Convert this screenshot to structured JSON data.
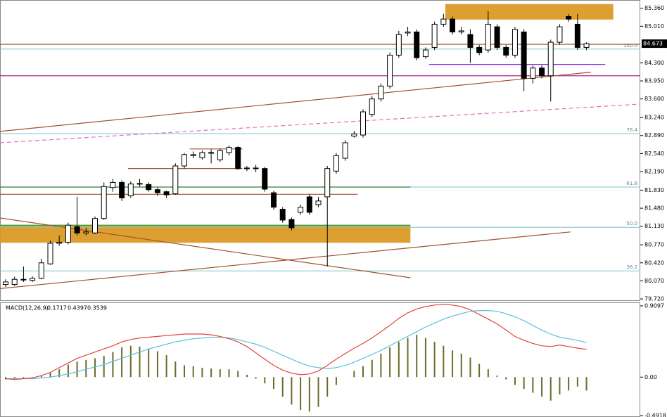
{
  "chart_data": [
    {
      "type": "candlestick",
      "open": [
        80.0,
        80.0,
        80.1,
        80.08,
        80.12,
        80.4,
        80.8,
        80.82,
        81.12,
        81.0,
        81.0,
        81.28,
        81.88,
        81.98,
        81.72,
        81.95,
        81.94,
        81.84,
        81.8,
        81.76,
        82.3,
        82.5,
        82.46,
        82.55,
        82.42,
        82.56,
        82.66,
        82.25,
        82.26,
        82.25,
        81.78,
        81.46,
        81.26,
        81.4,
        81.7,
        81.55,
        81.7,
        82.2,
        82.45,
        82.88,
        82.9,
        83.3,
        83.6,
        83.85,
        84.45,
        84.88,
        84.9,
        84.42,
        84.6,
        85.05,
        85.15,
        84.9,
        84.85,
        84.6,
        84.55,
        85.0,
        84.6,
        84.45,
        84.9,
        84.0,
        84.2,
        84.05,
        84.7,
        85.2,
        85.05,
        84.6
      ],
      "high": [
        80.1,
        80.15,
        80.35,
        80.16,
        80.5,
        80.85,
        80.95,
        81.2,
        81.7,
        81.1,
        81.32,
        81.98,
        82.05,
        82.02,
        82.0,
        82.05,
        81.98,
        81.88,
        81.82,
        82.35,
        82.55,
        82.58,
        82.6,
        82.62,
        82.64,
        82.7,
        82.68,
        82.3,
        82.32,
        82.28,
        81.82,
        81.5,
        81.3,
        81.55,
        81.75,
        81.7,
        82.3,
        82.55,
        82.8,
        82.98,
        83.4,
        83.66,
        83.9,
        84.5,
        84.92,
        85.0,
        84.95,
        84.6,
        85.1,
        85.25,
        85.2,
        85.0,
        84.95,
        84.65,
        85.3,
        85.05,
        84.65,
        85.0,
        84.95,
        84.25,
        84.25,
        84.75,
        85.05,
        85.25,
        85.25,
        84.7
      ],
      "low": [
        79.95,
        79.97,
        80.05,
        80.05,
        80.1,
        80.38,
        80.75,
        80.78,
        80.95,
        80.95,
        80.98,
        81.25,
        81.8,
        81.62,
        81.68,
        81.9,
        81.8,
        81.72,
        81.68,
        81.74,
        82.25,
        82.45,
        82.42,
        82.35,
        82.38,
        82.5,
        82.22,
        82.2,
        82.18,
        81.8,
        81.45,
        81.2,
        81.05,
        81.35,
        81.35,
        81.5,
        80.35,
        82.15,
        82.4,
        82.85,
        82.85,
        83.25,
        83.55,
        83.8,
        84.4,
        84.82,
        84.35,
        84.38,
        84.55,
        85.0,
        84.85,
        84.85,
        84.3,
        84.45,
        84.5,
        84.55,
        84.4,
        84.4,
        83.75,
        83.9,
        84.0,
        83.55,
        84.65,
        85.1,
        84.55,
        84.55
      ],
      "close": [
        80.05,
        80.1,
        80.1,
        80.12,
        80.42,
        80.8,
        80.82,
        81.15,
        81.0,
        81.02,
        81.28,
        81.9,
        81.98,
        81.68,
        81.95,
        81.96,
        81.84,
        81.78,
        81.74,
        82.3,
        82.52,
        82.52,
        82.56,
        82.56,
        82.6,
        82.66,
        82.25,
        82.26,
        82.25,
        81.85,
        81.5,
        81.25,
        81.1,
        81.5,
        81.4,
        81.62,
        82.25,
        82.5,
        82.75,
        82.92,
        83.35,
        83.6,
        83.85,
        84.45,
        84.85,
        84.9,
        84.4,
        84.55,
        85.05,
        85.15,
        84.9,
        84.92,
        84.6,
        84.5,
        85.05,
        84.6,
        84.45,
        84.95,
        84.0,
        84.2,
        84.05,
        84.7,
        85.0,
        85.15,
        84.6,
        84.673
      ],
      "up_color": "#ffffff",
      "down_color": "#000000",
      "xlim": [
        -0.63,
        71.02
      ],
      "ylim": [
        79.68,
        85.52
      ],
      "yticks": [
        {
          "value": 85.36,
          "label": "85.360"
        },
        {
          "value": 85.01,
          "label": "85.010"
        },
        {
          "value": 84.3,
          "label": "84.300"
        },
        {
          "value": 83.95,
          "label": "83.950"
        },
        {
          "value": 83.6,
          "label": "83.600"
        },
        {
          "value": 83.24,
          "label": "83.240"
        },
        {
          "value": 82.89,
          "label": "82.890"
        },
        {
          "value": 82.54,
          "label": "82.540"
        },
        {
          "value": 82.19,
          "label": "82.190"
        },
        {
          "value": 81.83,
          "label": "81.830"
        },
        {
          "value": 81.48,
          "label": "81.480"
        },
        {
          "value": 81.13,
          "label": "81.130"
        },
        {
          "value": 80.77,
          "label": "80.770"
        },
        {
          "value": 80.42,
          "label": "80.420"
        },
        {
          "value": 80.07,
          "label": "80.070"
        },
        {
          "value": 79.72,
          "label": "79.720"
        }
      ],
      "last_price": 84.673,
      "fib_levels": [
        {
          "price": 84.568,
          "text": "100.0"
        },
        {
          "price": 82.928,
          "text": "76.4"
        },
        {
          "price": 81.89,
          "text": "61.8"
        },
        {
          "price": 81.11,
          "text": "50.0"
        },
        {
          "price": 80.264,
          "text": "38.2"
        }
      ],
      "fib_color": "#7fc4cc",
      "zones": [
        {
          "x0": -0.63,
          "x1": 45.3,
          "top": 81.15,
          "bottom": 80.81,
          "color": "#d9961a"
        },
        {
          "x0": 49.2,
          "x1": 68.0,
          "top": 85.44,
          "bottom": 85.14,
          "color": "#d9961a"
        }
      ],
      "hlines": [
        {
          "price": 84.66,
          "x0": -0.63,
          "x1": 71.02,
          "color": "#a0522d"
        },
        {
          "price": 84.05,
          "x0": -0.63,
          "x1": 71.02,
          "color": "#b0208a"
        },
        {
          "price": 84.27,
          "x0": 47.4,
          "x1": 67.1,
          "color": "#8a2be2"
        },
        {
          "price": 81.89,
          "x0": -0.63,
          "x1": 45.3,
          "color": "#2e7d32"
        },
        {
          "price": 81.75,
          "x0": -0.63,
          "x1": 39.4,
          "color": "#a0522d"
        },
        {
          "price": 81.15,
          "x0": -0.63,
          "x1": 45.3,
          "color": "#2e9d32"
        },
        {
          "price": 82.25,
          "x0": 13.7,
          "x1": 26.5,
          "color": "#a0522d"
        },
        {
          "price": 82.63,
          "x0": 20.6,
          "x1": 26.5,
          "color": "#a0522d"
        }
      ],
      "trendlines": [
        {
          "x0": -0.63,
          "p0": 82.97,
          "x1": 65.5,
          "p1": 84.12,
          "color": "#a0522d",
          "dashed": false
        },
        {
          "x0": -0.63,
          "p0": 82.75,
          "x1": 71.02,
          "p1": 83.5,
          "color": "#e070c0",
          "dashed": true
        },
        {
          "x0": -0.63,
          "p0": 81.29,
          "x1": 45.3,
          "p1": 80.13,
          "color": "#a0522d",
          "dashed": false
        },
        {
          "x0": -0.63,
          "p0": 79.92,
          "x1": 63.2,
          "p1": 81.02,
          "color": "#a0522d",
          "dashed": false
        }
      ]
    },
    {
      "type": "macd",
      "title": "MACD(12,26,9)",
      "xlim": [
        -0.63,
        71.02
      ],
      "ylim": [
        -0.5,
        0.945
      ],
      "yticks": [
        0.9097,
        {
          "value": 0,
          "label": "0.00"
        },
        -0.4918
      ],
      "series": [
        {
          "style": "histogram",
          "color": "#6b6b2a",
          "values": [
            -0.03,
            -0.02,
            -0.02,
            -0.01,
            0.02,
            0.06,
            0.1,
            0.16,
            0.2,
            0.22,
            0.24,
            0.27,
            0.32,
            0.38,
            0.4,
            0.39,
            0.36,
            0.33,
            0.28,
            0.2,
            0.15,
            0.14,
            0.12,
            0.11,
            0.1,
            0.1,
            0.08,
            0.03,
            -0.02,
            -0.08,
            -0.15,
            -0.25,
            -0.35,
            -0.42,
            -0.44,
            -0.38,
            -0.25,
            -0.1,
            0.0,
            0.08,
            0.14,
            0.22,
            0.3,
            0.38,
            0.45,
            0.5,
            0.54,
            0.5,
            0.45,
            0.4,
            0.34,
            0.3,
            0.25,
            0.17,
            0.1,
            0.02,
            -0.03,
            -0.1,
            -0.15,
            -0.2,
            -0.25,
            -0.3,
            -0.22,
            -0.17,
            -0.12,
            -0.1717
          ]
        },
        {
          "style": "line",
          "color": "#5bc0de",
          "values": [
            -0.02,
            -0.02,
            -0.02,
            -0.02,
            -0.01,
            0.0,
            0.02,
            0.04,
            0.07,
            0.1,
            0.13,
            0.16,
            0.2,
            0.24,
            0.28,
            0.32,
            0.36,
            0.39,
            0.42,
            0.45,
            0.47,
            0.49,
            0.5,
            0.51,
            0.51,
            0.5,
            0.48,
            0.45,
            0.42,
            0.38,
            0.33,
            0.28,
            0.23,
            0.18,
            0.14,
            0.12,
            0.11,
            0.12,
            0.15,
            0.19,
            0.24,
            0.29,
            0.34,
            0.4,
            0.46,
            0.52,
            0.58,
            0.64,
            0.69,
            0.74,
            0.78,
            0.81,
            0.84,
            0.85,
            0.85,
            0.84,
            0.81,
            0.77,
            0.72,
            0.66,
            0.6,
            0.55,
            0.51,
            0.49,
            0.47,
            0.4397
          ]
        },
        {
          "style": "line",
          "color": "#e0453a",
          "values": [
            -0.02,
            -0.03,
            -0.02,
            -0.01,
            0.02,
            0.06,
            0.12,
            0.18,
            0.24,
            0.28,
            0.32,
            0.36,
            0.4,
            0.45,
            0.48,
            0.5,
            0.51,
            0.52,
            0.53,
            0.54,
            0.55,
            0.55,
            0.55,
            0.54,
            0.52,
            0.49,
            0.45,
            0.39,
            0.31,
            0.23,
            0.15,
            0.09,
            0.05,
            0.03,
            0.04,
            0.08,
            0.15,
            0.23,
            0.3,
            0.37,
            0.43,
            0.5,
            0.58,
            0.66,
            0.75,
            0.82,
            0.87,
            0.9,
            0.92,
            0.93,
            0.92,
            0.9,
            0.86,
            0.8,
            0.74,
            0.68,
            0.6,
            0.52,
            0.47,
            0.43,
            0.4,
            0.39,
            0.41,
            0.39,
            0.37,
            0.3539
          ]
        }
      ]
    }
  ]
}
